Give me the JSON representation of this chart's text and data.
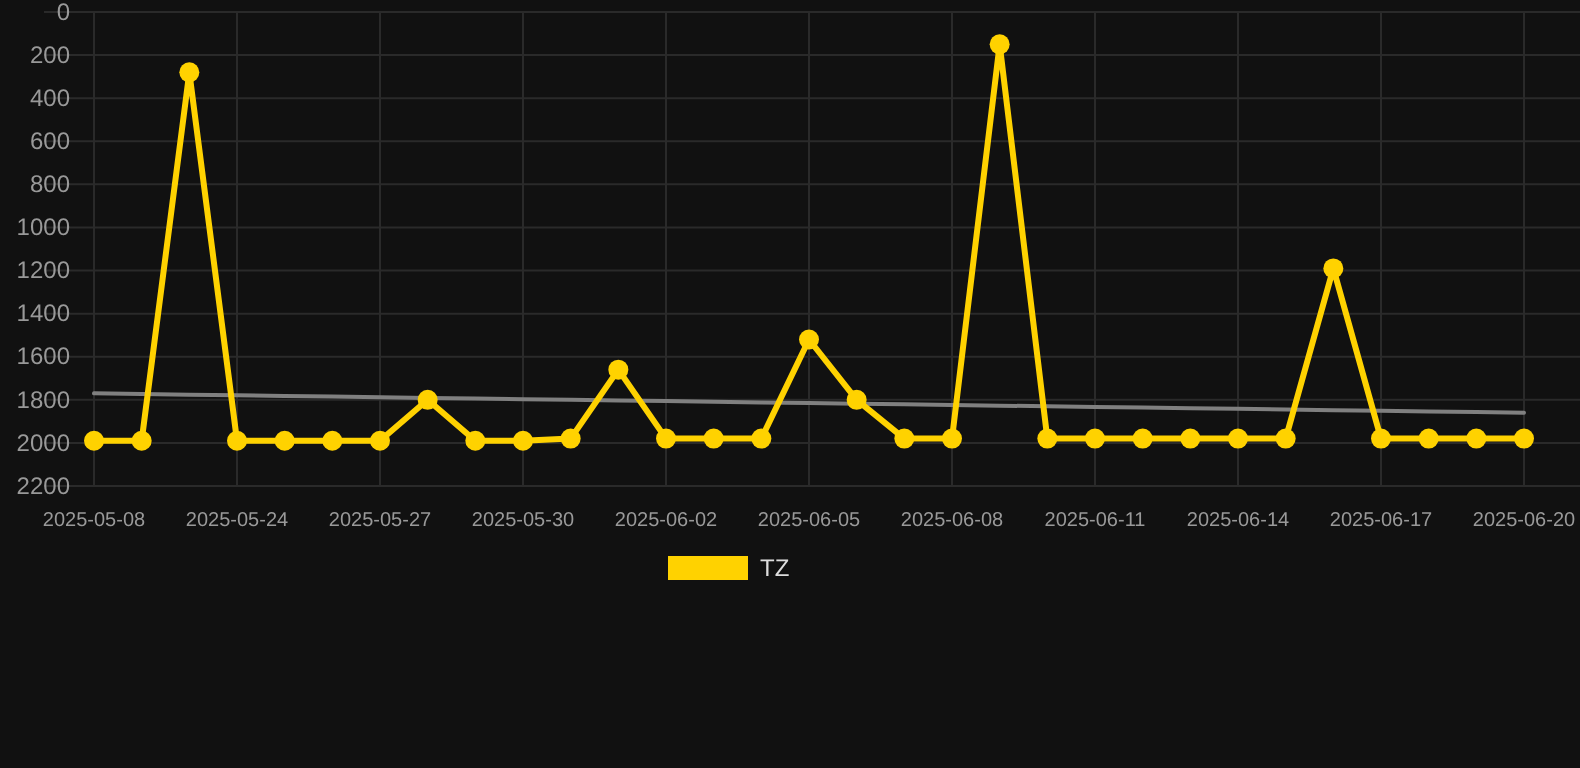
{
  "chart_data": {
    "type": "line",
    "categories": [
      "2025-05-08",
      null,
      null,
      "2025-05-24",
      null,
      null,
      "2025-05-27",
      null,
      null,
      "2025-05-30",
      null,
      null,
      "2025-06-02",
      null,
      null,
      "2025-06-05",
      null,
      null,
      "2025-06-08",
      null,
      null,
      "2025-06-11",
      null,
      null,
      "2025-06-14",
      null,
      null,
      "2025-06-17",
      null,
      null,
      "2025-06-20"
    ],
    "series": [
      {
        "name": "TZ",
        "color": "#ffd200",
        "marker": "circle",
        "values": [
          1990,
          1990,
          280,
          1990,
          1990,
          1990,
          1990,
          1800,
          1990,
          1990,
          1980,
          1660,
          1980,
          1980,
          1980,
          1520,
          1800,
          1980,
          1980,
          150,
          1980,
          1980,
          1980,
          1980,
          1980,
          1980,
          1190,
          1980,
          1980,
          1980,
          1980
        ]
      },
      {
        "type": "line",
        "color": "#808080",
        "marker": "none",
        "values": [
          1770,
          1773,
          1776,
          1779,
          1782,
          1785,
          1788,
          1791,
          1794,
          1797,
          1800,
          1803,
          1806,
          1809,
          1812,
          1815,
          1818,
          1821,
          1824,
          1827,
          1830,
          1833,
          1836,
          1839,
          1842,
          1845,
          1848,
          1851,
          1854,
          1857,
          1860
        ]
      }
    ],
    "ylim": [
      2200,
      0
    ],
    "yticks": [
      0,
      200,
      400,
      600,
      800,
      1000,
      1200,
      1400,
      1600,
      1800,
      2000,
      2200
    ],
    "grid": true,
    "legend": "bottom"
  }
}
